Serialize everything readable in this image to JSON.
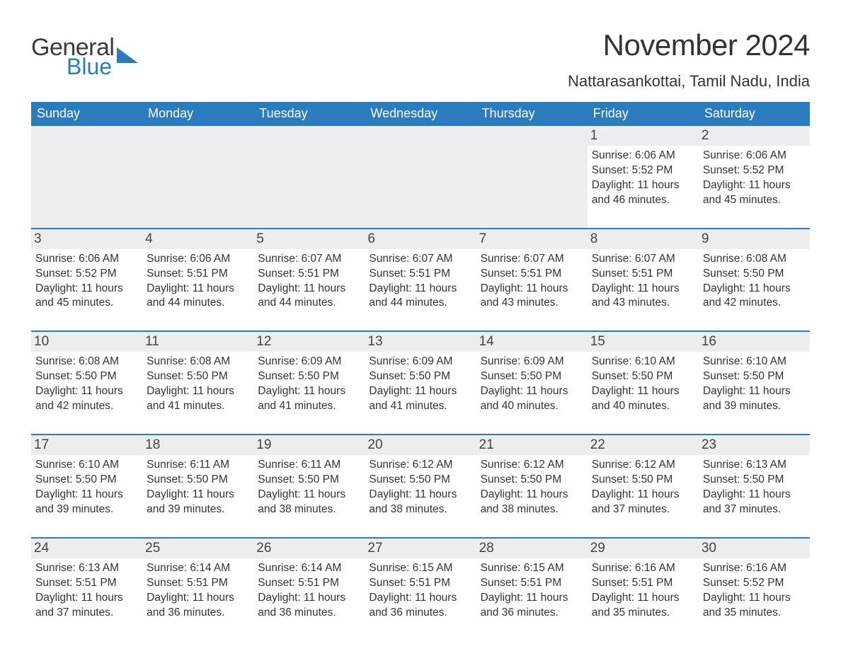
{
  "logo": {
    "word1": "General",
    "word2": "Blue"
  },
  "title": "November 2024",
  "location": "Nattarasankottai, Tamil Nadu, India",
  "colors": {
    "brand_blue": "#2b7bbf",
    "header_text": "#ffffff",
    "body_text": "#333333",
    "daynum_bg": "#ededed",
    "page_bg": "#ffffff"
  },
  "typography": {
    "title_fontsize": 42,
    "location_fontsize": 22,
    "dow_fontsize": 18,
    "daynum_fontsize": 19,
    "body_fontsize": 15.5,
    "logo_fontsize": 34
  },
  "layout": {
    "columns": 7,
    "rows": 5,
    "leading_blanks": 5
  },
  "days_of_week": [
    "Sunday",
    "Monday",
    "Tuesday",
    "Wednesday",
    "Thursday",
    "Friday",
    "Saturday"
  ],
  "labels": {
    "sunrise": "Sunrise: ",
    "sunset": "Sunset: ",
    "daylight": "Daylight: "
  },
  "days": [
    {
      "n": 1,
      "sr": "6:06 AM",
      "ss": "5:52 PM",
      "dl": "11 hours and 46 minutes."
    },
    {
      "n": 2,
      "sr": "6:06 AM",
      "ss": "5:52 PM",
      "dl": "11 hours and 45 minutes."
    },
    {
      "n": 3,
      "sr": "6:06 AM",
      "ss": "5:52 PM",
      "dl": "11 hours and 45 minutes."
    },
    {
      "n": 4,
      "sr": "6:06 AM",
      "ss": "5:51 PM",
      "dl": "11 hours and 44 minutes."
    },
    {
      "n": 5,
      "sr": "6:07 AM",
      "ss": "5:51 PM",
      "dl": "11 hours and 44 minutes."
    },
    {
      "n": 6,
      "sr": "6:07 AM",
      "ss": "5:51 PM",
      "dl": "11 hours and 44 minutes."
    },
    {
      "n": 7,
      "sr": "6:07 AM",
      "ss": "5:51 PM",
      "dl": "11 hours and 43 minutes."
    },
    {
      "n": 8,
      "sr": "6:07 AM",
      "ss": "5:51 PM",
      "dl": "11 hours and 43 minutes."
    },
    {
      "n": 9,
      "sr": "6:08 AM",
      "ss": "5:50 PM",
      "dl": "11 hours and 42 minutes."
    },
    {
      "n": 10,
      "sr": "6:08 AM",
      "ss": "5:50 PM",
      "dl": "11 hours and 42 minutes."
    },
    {
      "n": 11,
      "sr": "6:08 AM",
      "ss": "5:50 PM",
      "dl": "11 hours and 41 minutes."
    },
    {
      "n": 12,
      "sr": "6:09 AM",
      "ss": "5:50 PM",
      "dl": "11 hours and 41 minutes."
    },
    {
      "n": 13,
      "sr": "6:09 AM",
      "ss": "5:50 PM",
      "dl": "11 hours and 41 minutes."
    },
    {
      "n": 14,
      "sr": "6:09 AM",
      "ss": "5:50 PM",
      "dl": "11 hours and 40 minutes."
    },
    {
      "n": 15,
      "sr": "6:10 AM",
      "ss": "5:50 PM",
      "dl": "11 hours and 40 minutes."
    },
    {
      "n": 16,
      "sr": "6:10 AM",
      "ss": "5:50 PM",
      "dl": "11 hours and 39 minutes."
    },
    {
      "n": 17,
      "sr": "6:10 AM",
      "ss": "5:50 PM",
      "dl": "11 hours and 39 minutes."
    },
    {
      "n": 18,
      "sr": "6:11 AM",
      "ss": "5:50 PM",
      "dl": "11 hours and 39 minutes."
    },
    {
      "n": 19,
      "sr": "6:11 AM",
      "ss": "5:50 PM",
      "dl": "11 hours and 38 minutes."
    },
    {
      "n": 20,
      "sr": "6:12 AM",
      "ss": "5:50 PM",
      "dl": "11 hours and 38 minutes."
    },
    {
      "n": 21,
      "sr": "6:12 AM",
      "ss": "5:50 PM",
      "dl": "11 hours and 38 minutes."
    },
    {
      "n": 22,
      "sr": "6:12 AM",
      "ss": "5:50 PM",
      "dl": "11 hours and 37 minutes."
    },
    {
      "n": 23,
      "sr": "6:13 AM",
      "ss": "5:50 PM",
      "dl": "11 hours and 37 minutes."
    },
    {
      "n": 24,
      "sr": "6:13 AM",
      "ss": "5:51 PM",
      "dl": "11 hours and 37 minutes."
    },
    {
      "n": 25,
      "sr": "6:14 AM",
      "ss": "5:51 PM",
      "dl": "11 hours and 36 minutes."
    },
    {
      "n": 26,
      "sr": "6:14 AM",
      "ss": "5:51 PM",
      "dl": "11 hours and 36 minutes."
    },
    {
      "n": 27,
      "sr": "6:15 AM",
      "ss": "5:51 PM",
      "dl": "11 hours and 36 minutes."
    },
    {
      "n": 28,
      "sr": "6:15 AM",
      "ss": "5:51 PM",
      "dl": "11 hours and 36 minutes."
    },
    {
      "n": 29,
      "sr": "6:16 AM",
      "ss": "5:51 PM",
      "dl": "11 hours and 35 minutes."
    },
    {
      "n": 30,
      "sr": "6:16 AM",
      "ss": "5:52 PM",
      "dl": "11 hours and 35 minutes."
    }
  ]
}
